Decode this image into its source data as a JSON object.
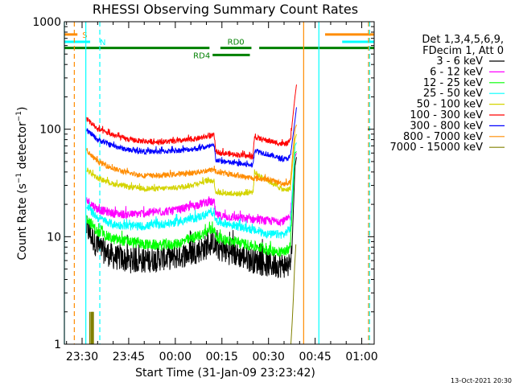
{
  "chart_data": {
    "type": "line",
    "title": "RHESSI Observing Summary Count Rates",
    "xlabel": "Start Time (31-Jan-09 23:23:42)",
    "ylabel": "Count Rate (s⁻¹ detector⁻¹)",
    "ylabel_main": "Count Rate (s",
    "ylabel_sup1": "−1",
    "ylabel_mid": " detector",
    "ylabel_sup2": "−1",
    "ylabel_end": ")",
    "yscale": "log",
    "ylim": [
      1,
      1000
    ],
    "xlim_minutes": [
      -35.7,
      64.0
    ],
    "x_ticks": [
      {
        "label": "23:30",
        "min": -30
      },
      {
        "label": "23:45",
        "min": -15
      },
      {
        "label": "00:00",
        "min": 0
      },
      {
        "label": "00:15",
        "min": 15
      },
      {
        "label": "00:30",
        "min": 30
      },
      {
        "label": "00:45",
        "min": 45
      },
      {
        "label": "01:00",
        "min": 60
      }
    ],
    "y_ticks": [
      {
        "label": "1",
        "value": 1
      },
      {
        "label": "10",
        "value": 10
      },
      {
        "label": "100",
        "value": 100
      },
      {
        "label": "1000",
        "value": 1000
      }
    ],
    "legend_header": [
      "Det 1,3,4,5,6,9,",
      "FDecim 1, Att 0"
    ],
    "legend_position": "right",
    "timestamp": "13-Oct-2021 20:30",
    "series": [
      {
        "name": "3 - 6 keV",
        "color": "#000000",
        "noise": 0.12,
        "points": [
          [
            -28.5,
            12
          ],
          [
            -25,
            8
          ],
          [
            -20,
            6.5
          ],
          [
            -15,
            6
          ],
          [
            -10,
            6
          ],
          [
            -5,
            6.3
          ],
          [
            0,
            6.5
          ],
          [
            5,
            7
          ],
          [
            10,
            8
          ],
          [
            12.5,
            9
          ],
          [
            13,
            8
          ],
          [
            15,
            7.5
          ],
          [
            20,
            6.8
          ],
          [
            25,
            6
          ],
          [
            30,
            5.5
          ],
          [
            35,
            5.4
          ],
          [
            37,
            5.5
          ],
          [
            37.5,
            7
          ],
          [
            38.5,
            45
          ],
          [
            39,
            55
          ]
        ]
      },
      {
        "name": "6 - 12 keV",
        "color": "#ff00ff",
        "noise": 0.04,
        "points": [
          [
            -28.5,
            22
          ],
          [
            -25,
            18
          ],
          [
            -20,
            16.5
          ],
          [
            -15,
            16
          ],
          [
            -10,
            16.5
          ],
          [
            -5,
            17
          ],
          [
            0,
            17.5
          ],
          [
            5,
            19
          ],
          [
            10,
            21
          ],
          [
            12.5,
            21
          ],
          [
            13,
            16
          ],
          [
            15,
            15.5
          ],
          [
            20,
            15
          ],
          [
            25,
            14.5
          ],
          [
            30,
            14
          ],
          [
            35,
            14
          ],
          [
            37,
            15
          ],
          [
            38.5,
            55
          ],
          [
            39,
            60
          ]
        ]
      },
      {
        "name": "12 - 25 keV",
        "color": "#00ff00",
        "noise": 0.05,
        "points": [
          [
            -28.5,
            15
          ],
          [
            -25,
            11
          ],
          [
            -20,
            9.5
          ],
          [
            -15,
            9
          ],
          [
            -10,
            8.5
          ],
          [
            -5,
            8.3
          ],
          [
            0,
            8.5
          ],
          [
            5,
            9.5
          ],
          [
            10,
            11
          ],
          [
            12.5,
            12
          ],
          [
            13,
            10
          ],
          [
            15,
            9.5
          ],
          [
            20,
            8.8
          ],
          [
            25,
            8.2
          ],
          [
            30,
            7.5
          ],
          [
            35,
            7.2
          ],
          [
            37,
            8
          ],
          [
            38.5,
            60
          ],
          [
            39,
            62
          ]
        ]
      },
      {
        "name": "25 - 50 keV",
        "color": "#00ffff",
        "noise": 0.04,
        "points": [
          [
            -28.5,
            19
          ],
          [
            -25,
            15
          ],
          [
            -20,
            13
          ],
          [
            -15,
            12.5
          ],
          [
            -10,
            12.5
          ],
          [
            -5,
            13
          ],
          [
            0,
            13.5
          ],
          [
            5,
            14.5
          ],
          [
            10,
            16
          ],
          [
            12.5,
            17
          ],
          [
            13,
            14
          ],
          [
            15,
            13.5
          ],
          [
            20,
            12.5
          ],
          [
            25,
            11.5
          ],
          [
            30,
            10.5
          ],
          [
            35,
            10.5
          ],
          [
            37,
            12
          ],
          [
            38.5,
            70
          ],
          [
            39,
            75
          ]
        ]
      },
      {
        "name": "50 - 100 keV",
        "color": "#d4d400",
        "noise": 0.025,
        "points": [
          [
            -28.5,
            42
          ],
          [
            -25,
            35
          ],
          [
            -20,
            31
          ],
          [
            -15,
            29
          ],
          [
            -10,
            28
          ],
          [
            -5,
            28
          ],
          [
            0,
            28.5
          ],
          [
            5,
            30
          ],
          [
            10,
            33
          ],
          [
            12.5,
            33
          ],
          [
            13,
            26
          ],
          [
            15,
            25.5
          ],
          [
            20,
            25
          ],
          [
            25,
            26
          ],
          [
            25.5,
            40
          ],
          [
            27,
            37
          ],
          [
            30,
            33
          ],
          [
            35,
            27
          ],
          [
            37,
            28
          ],
          [
            38.5,
            80
          ],
          [
            39,
            90
          ]
        ]
      },
      {
        "name": "100 - 300 keV",
        "color": "#ff0000",
        "noise": 0.025,
        "points": [
          [
            -28.5,
            125
          ],
          [
            -25,
            100
          ],
          [
            -20,
            88
          ],
          [
            -15,
            80
          ],
          [
            -10,
            77
          ],
          [
            -5,
            76
          ],
          [
            0,
            77
          ],
          [
            5,
            80
          ],
          [
            10,
            85
          ],
          [
            12.5,
            88
          ],
          [
            13,
            62
          ],
          [
            15,
            60
          ],
          [
            20,
            58
          ],
          [
            25,
            55
          ],
          [
            25.5,
            85
          ],
          [
            27,
            82
          ],
          [
            30,
            78
          ],
          [
            35,
            72
          ],
          [
            37,
            76
          ],
          [
            38.5,
            200
          ],
          [
            39,
            260
          ]
        ]
      },
      {
        "name": "300 - 800 keV",
        "color": "#0000ff",
        "noise": 0.025,
        "points": [
          [
            -28.5,
            98
          ],
          [
            -25,
            80
          ],
          [
            -20,
            70
          ],
          [
            -15,
            64
          ],
          [
            -10,
            62
          ],
          [
            -5,
            62
          ],
          [
            0,
            63
          ],
          [
            5,
            65
          ],
          [
            10,
            68
          ],
          [
            12.5,
            70
          ],
          [
            13,
            52
          ],
          [
            15,
            50
          ],
          [
            20,
            48
          ],
          [
            25,
            46
          ],
          [
            25.5,
            64
          ],
          [
            27,
            62
          ],
          [
            30,
            58
          ],
          [
            35,
            52
          ],
          [
            37,
            55
          ],
          [
            38.5,
            120
          ],
          [
            39,
            160
          ]
        ]
      },
      {
        "name": "800 - 7000 keV",
        "color": "#ff8c00",
        "noise": 0.025,
        "points": [
          [
            -28.5,
            62
          ],
          [
            -25,
            50
          ],
          [
            -20,
            43
          ],
          [
            -15,
            39
          ],
          [
            -10,
            37
          ],
          [
            -5,
            37
          ],
          [
            0,
            38
          ],
          [
            5,
            39
          ],
          [
            10,
            41
          ],
          [
            12.5,
            42
          ],
          [
            13,
            40
          ],
          [
            15,
            39
          ],
          [
            20,
            37
          ],
          [
            25,
            35
          ],
          [
            30,
            34
          ],
          [
            35,
            31
          ],
          [
            37,
            32
          ],
          [
            38.5,
            100
          ],
          [
            39,
            110
          ]
        ]
      },
      {
        "name": "7000 - 15000 keV",
        "color": "#808000",
        "noise": 0.0,
        "points": [
          [
            37.2,
            1
          ],
          [
            37.6,
            1.6
          ],
          [
            38.2,
            3.5
          ],
          [
            38.6,
            8
          ],
          [
            39,
            9
          ]
        ]
      }
    ],
    "bursts_7000_15000_keV": [
      [
        -27.5,
        1,
        2
      ],
      [
        -27.0,
        1,
        2
      ],
      [
        -26.7,
        1,
        2
      ],
      [
        -26.4,
        1,
        2
      ]
    ],
    "flags": [
      {
        "label": "S",
        "color": "#ff8c00",
        "segments": [
          [
            -35.7,
            -31.5
          ],
          [
            48.2,
            64
          ]
        ],
        "value": 760
      },
      {
        "label": "N",
        "color": "#00ffff",
        "segments": [
          [
            -35.7,
            -27.4
          ],
          [
            53.7,
            64
          ]
        ],
        "value": 650
      },
      {
        "label": "RD0",
        "color": "#008000",
        "segments": [
          [
            -35.7,
            11
          ],
          [
            14.5,
            24.5
          ],
          [
            27,
            64
          ]
        ],
        "value": 570
      },
      {
        "label": "RD4",
        "color": "#008000",
        "segments": [
          [
            12,
            24
          ]
        ],
        "value": 490
      }
    ],
    "vlines": [
      {
        "min": -35.7,
        "color": "#00ffff",
        "style": "solid"
      },
      {
        "min": -32.5,
        "color": "#ff8c00",
        "style": "dash"
      },
      {
        "min": -28.8,
        "color": "#00ffff",
        "style": "solid"
      },
      {
        "min": -24.3,
        "color": "#00ffff",
        "style": "dash"
      },
      {
        "min": 41.3,
        "color": "#ff8c00",
        "style": "solid"
      },
      {
        "min": 46.2,
        "color": "#00ffff",
        "style": "solid"
      },
      {
        "min": 62.2,
        "color": "#ff8c00",
        "style": "dash"
      },
      {
        "min": 62.5,
        "color": "#00ffff",
        "style": "dash"
      }
    ]
  }
}
